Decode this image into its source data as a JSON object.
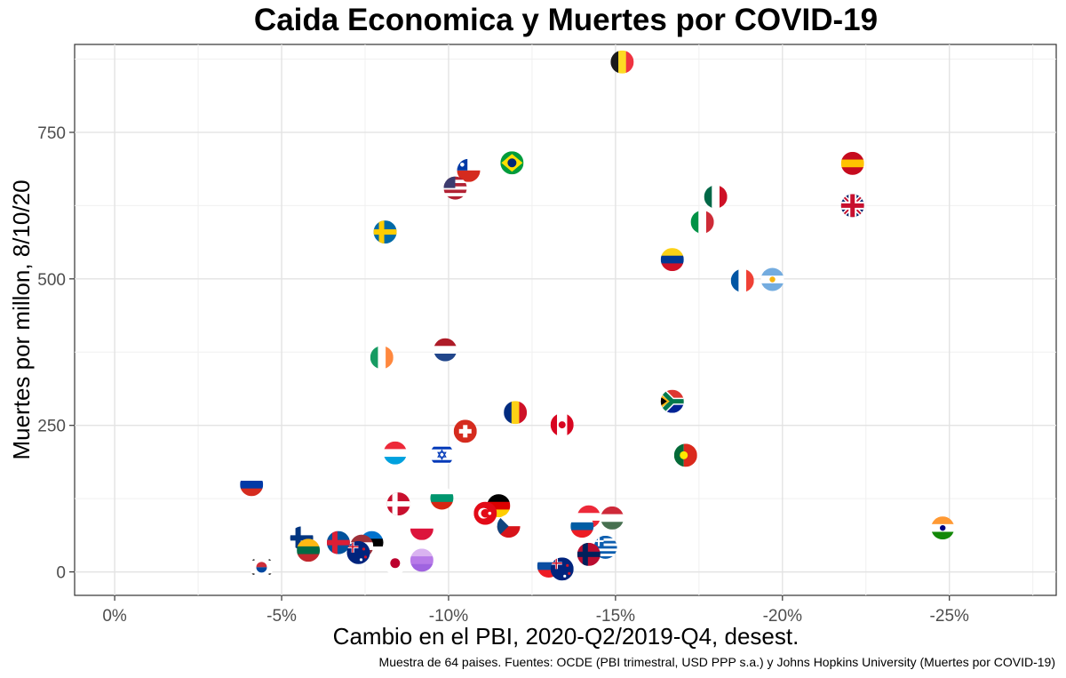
{
  "chart_data": {
    "type": "scatter",
    "title": "Caida Economica y Muertes por COVID-19",
    "xlabel": "Cambio en el PBI, 2020-Q2/2019-Q4, desest.",
    "ylabel": "Muertes por millon, 8/10/20",
    "caption": "Muestra de 64 paises. Fuentes: OCDE (PBI trimestral, USD PPP s.a.) y Johns Hopkins University (Muertes por COVID-19)",
    "xlim": [
      1.2,
      -28.2
    ],
    "ylim": [
      -40,
      900
    ],
    "x_ticks": [
      {
        "value": 0,
        "label": "0%"
      },
      {
        "value": -5,
        "label": "-5%"
      },
      {
        "value": -10,
        "label": "-10%"
      },
      {
        "value": -15,
        "label": "-15%"
      },
      {
        "value": -20,
        "label": "-20%"
      },
      {
        "value": -25,
        "label": "-25%"
      }
    ],
    "y_ticks": [
      {
        "value": 0,
        "label": "0"
      },
      {
        "value": 250,
        "label": "250"
      },
      {
        "value": 500,
        "label": "500"
      },
      {
        "value": 750,
        "label": "750"
      }
    ],
    "points": [
      {
        "country": "Belgium",
        "x": -15.2,
        "y": 870,
        "flag": "v-tricolor",
        "colors": [
          "#1a1a1a",
          "#fdda24",
          "#ef3340"
        ]
      },
      {
        "country": "Spain",
        "x": -22.1,
        "y": 697,
        "flag": "h-tricolor",
        "colors": [
          "#c60b1e",
          "#ffc400",
          "#c60b1e"
        ]
      },
      {
        "country": "United Kingdom",
        "x": -22.1,
        "y": 625,
        "flag": "uk",
        "colors": [
          "#012169",
          "#ffffff",
          "#c8102e"
        ]
      },
      {
        "country": "Brazil",
        "x": -11.9,
        "y": 698,
        "flag": "brazil",
        "colors": [
          "#009c3b",
          "#ffdf00",
          "#002776"
        ]
      },
      {
        "country": "Chile",
        "x": -10.6,
        "y": 685,
        "flag": "chile",
        "colors": [
          "#ffffff",
          "#d52b1e",
          "#0039a6"
        ]
      },
      {
        "country": "United States",
        "x": -10.2,
        "y": 655,
        "flag": "usa",
        "colors": [
          "#b22234",
          "#ffffff",
          "#3c3b6e"
        ]
      },
      {
        "country": "Mexico",
        "x": -18.0,
        "y": 640,
        "flag": "v-tricolor",
        "colors": [
          "#006847",
          "#ffffff",
          "#ce1126"
        ]
      },
      {
        "country": "Italy",
        "x": -17.6,
        "y": 597,
        "flag": "v-tricolor",
        "colors": [
          "#009246",
          "#ffffff",
          "#ce2b37"
        ]
      },
      {
        "country": "Sweden",
        "x": -8.1,
        "y": 580,
        "flag": "nordic",
        "colors": [
          "#006aa7",
          "#fecc00"
        ]
      },
      {
        "country": "Colombia",
        "x": -16.7,
        "y": 533,
        "flag": "h-tricolor",
        "colors": [
          "#fcd116",
          "#003893",
          "#ce1126"
        ]
      },
      {
        "country": "France",
        "x": -18.8,
        "y": 497,
        "flag": "v-tricolor",
        "colors": [
          "#0055a4",
          "#ffffff",
          "#ef4135"
        ]
      },
      {
        "country": "Argentina",
        "x": -19.7,
        "y": 499,
        "flag": "h-tricolor-dot",
        "colors": [
          "#74acdf",
          "#ffffff",
          "#74acdf",
          "#f6b40e"
        ]
      },
      {
        "country": "Netherlands",
        "x": -9.9,
        "y": 379,
        "flag": "h-tricolor",
        "colors": [
          "#ae1c28",
          "#ffffff",
          "#21468b"
        ]
      },
      {
        "country": "Ireland",
        "x": -8.0,
        "y": 366,
        "flag": "v-tricolor",
        "colors": [
          "#169b62",
          "#ffffff",
          "#ff883e"
        ]
      },
      {
        "country": "South Africa",
        "x": -16.7,
        "y": 291,
        "flag": "south-africa",
        "colors": [
          "#de3831",
          "#ffffff",
          "#007a4d",
          "#002395",
          "#000000",
          "#ffb612"
        ]
      },
      {
        "country": "Romania",
        "x": -12.0,
        "y": 272,
        "flag": "v-tricolor",
        "colors": [
          "#002b7f",
          "#fcd116",
          "#ce1126"
        ]
      },
      {
        "country": "Canada",
        "x": -13.4,
        "y": 251,
        "flag": "v-tricolor-dot",
        "colors": [
          "#d80621",
          "#ffffff",
          "#d80621",
          "#d80621"
        ]
      },
      {
        "country": "Switzerland",
        "x": -10.5,
        "y": 240,
        "flag": "swiss",
        "colors": [
          "#d52b1e",
          "#ffffff"
        ]
      },
      {
        "country": "Luxembourg",
        "x": -8.4,
        "y": 203,
        "flag": "h-tricolor",
        "colors": [
          "#ed2939",
          "#ffffff",
          "#00a1de"
        ]
      },
      {
        "country": "Israel",
        "x": -9.8,
        "y": 200,
        "flag": "israel",
        "colors": [
          "#ffffff",
          "#0038b8"
        ]
      },
      {
        "country": "Portugal",
        "x": -17.1,
        "y": 199,
        "flag": "v-split-dot",
        "colors": [
          "#046a38",
          "#da291c",
          "#ffe900"
        ]
      },
      {
        "country": "Russia",
        "x": -4.1,
        "y": 149,
        "flag": "h-tricolor",
        "colors": [
          "#ffffff",
          "#0039a6",
          "#d52b1e"
        ]
      },
      {
        "country": "Bulgaria",
        "x": -9.8,
        "y": 126,
        "flag": "h-tricolor",
        "colors": [
          "#ffffff",
          "#00966e",
          "#d62612"
        ]
      },
      {
        "country": "Denmark",
        "x": -8.5,
        "y": 116,
        "flag": "nordic",
        "colors": [
          "#c8102e",
          "#ffffff"
        ]
      },
      {
        "country": "Germany",
        "x": -11.5,
        "y": 113,
        "flag": "h-tricolor",
        "colors": [
          "#000000",
          "#dd0000",
          "#ffce00"
        ]
      },
      {
        "country": "Turkey",
        "x": -11.1,
        "y": 100,
        "flag": "turkey",
        "colors": [
          "#e30a17",
          "#ffffff"
        ]
      },
      {
        "country": "Austria",
        "x": -14.2,
        "y": 94,
        "flag": "h-tricolor",
        "colors": [
          "#ed2939",
          "#ffffff",
          "#ed2939"
        ]
      },
      {
        "country": "Hungary",
        "x": -14.9,
        "y": 92,
        "flag": "h-tricolor",
        "colors": [
          "#ce2939",
          "#ffffff",
          "#477050"
        ]
      },
      {
        "country": "Czech Republic",
        "x": -11.8,
        "y": 78,
        "flag": "czech",
        "colors": [
          "#ffffff",
          "#d7141a",
          "#11457e"
        ]
      },
      {
        "country": "Slovenia",
        "x": -14.0,
        "y": 78,
        "flag": "h-tricolor",
        "colors": [
          "#ffffff",
          "#005da4",
          "#ed1c24"
        ]
      },
      {
        "country": "Poland",
        "x": -9.2,
        "y": 74,
        "flag": "h-bicolor",
        "colors": [
          "#ffffff",
          "#dc143c"
        ]
      },
      {
        "country": "India",
        "x": -24.8,
        "y": 75,
        "flag": "h-tricolor-dot",
        "colors": [
          "#ff9933",
          "#ffffff",
          "#138808",
          "#000080"
        ]
      },
      {
        "country": "Finland",
        "x": -5.6,
        "y": 58,
        "flag": "nordic",
        "colors": [
          "#ffffff",
          "#003580"
        ]
      },
      {
        "country": "Iceland",
        "x": -6.7,
        "y": 50,
        "flag": "nordic",
        "colors": [
          "#02529c",
          "#dc1e35"
        ]
      },
      {
        "country": "Estonia",
        "x": -7.7,
        "y": 50,
        "flag": "h-tricolor",
        "colors": [
          "#0072ce",
          "#000000",
          "#ffffff"
        ]
      },
      {
        "country": "Latvia",
        "x": -7.4,
        "y": 44,
        "flag": "h-tricolor",
        "colors": [
          "#9e3039",
          "#ffffff",
          "#9e3039"
        ]
      },
      {
        "country": "Greece",
        "x": -14.7,
        "y": 42,
        "flag": "h-stripes",
        "colors": [
          "#0d5eaf",
          "#ffffff"
        ]
      },
      {
        "country": "Lithuania",
        "x": -5.8,
        "y": 37,
        "flag": "h-tricolor",
        "colors": [
          "#fdb913",
          "#006a44",
          "#c1272d"
        ]
      },
      {
        "country": "Australia",
        "x": -7.3,
        "y": 33,
        "flag": "oceania",
        "colors": [
          "#00247d",
          "#ffffff",
          "#cf142b"
        ]
      },
      {
        "country": "Norway",
        "x": -14.2,
        "y": 30,
        "flag": "nordic",
        "colors": [
          "#ba0c2f",
          "#00205b"
        ]
      },
      {
        "country": "Japan",
        "x": -8.4,
        "y": 15,
        "flag": "japan",
        "colors": [
          "#ffffff",
          "#bc002d"
        ]
      },
      {
        "country": "Slovakia",
        "x": -13.0,
        "y": 10,
        "flag": "h-tricolor",
        "colors": [
          "#ffffff",
          "#0b4ea2",
          "#ee1c25"
        ]
      },
      {
        "country": "New Zealand",
        "x": -13.4,
        "y": 5,
        "flag": "oceania",
        "colors": [
          "#00247d",
          "#ffffff",
          "#cc142b"
        ]
      },
      {
        "country": "Korea",
        "x": -4.4,
        "y": 8,
        "flag": "korea",
        "colors": [
          "#ffffff",
          "#cd2e3a",
          "#0047a0"
        ]
      },
      {
        "country": "Unknown",
        "x": -9.2,
        "y": 20,
        "flag": "h-tricolor",
        "colors": [
          "#d9b3f0",
          "#b87be8",
          "#a064e0"
        ]
      }
    ]
  }
}
